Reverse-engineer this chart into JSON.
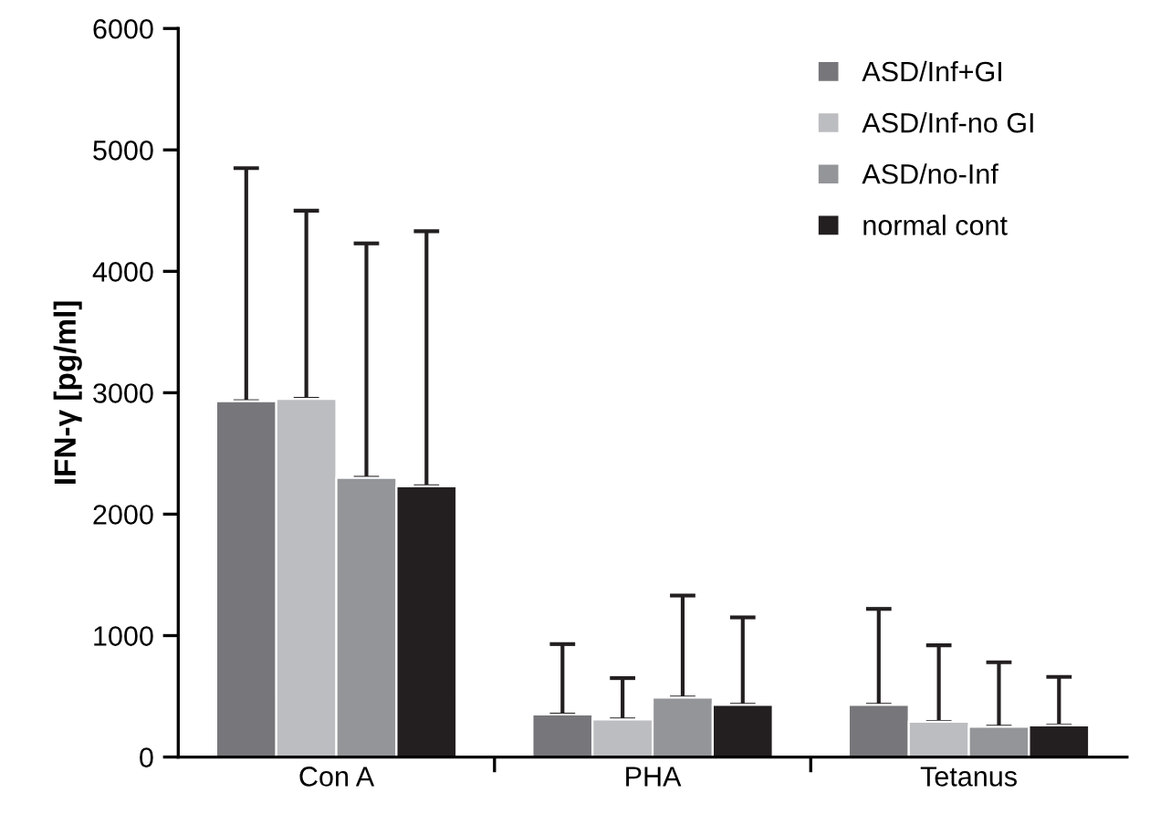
{
  "chart_data": {
    "type": "bar",
    "ylabel": "IFN-γ [pg/ml]",
    "categories": [
      "Con A",
      "PHA",
      "Tetanus"
    ],
    "series": [
      {
        "name": "ASD/Inf+GI",
        "color": "#77777b",
        "values": [
          2930,
          350,
          430
        ],
        "errors": [
          [
            2930,
            4850
          ],
          [
            350,
            930
          ],
          [
            430,
            1220
          ]
        ]
      },
      {
        "name": "ASD/Inf-no GI",
        "color": "#bcbdc0",
        "values": [
          2950,
          310,
          290
        ],
        "errors": [
          [
            2950,
            4500
          ],
          [
            310,
            650
          ],
          [
            290,
            920
          ]
        ]
      },
      {
        "name": "ASD/no-Inf",
        "color": "#939598",
        "values": [
          2300,
          490,
          250
        ],
        "errors": [
          [
            2300,
            4230
          ],
          [
            490,
            1330
          ],
          [
            250,
            780
          ]
        ]
      },
      {
        "name": "normal cont",
        "color": "#231f20",
        "values": [
          2230,
          430,
          260
        ],
        "errors": [
          [
            2230,
            4330
          ],
          [
            430,
            1150
          ],
          [
            260,
            660
          ]
        ]
      }
    ],
    "ylim": [
      0,
      6000
    ],
    "yticks": [
      0,
      1000,
      2000,
      3000,
      4000,
      5000,
      6000
    ],
    "grid": false,
    "legend": "top right"
  }
}
